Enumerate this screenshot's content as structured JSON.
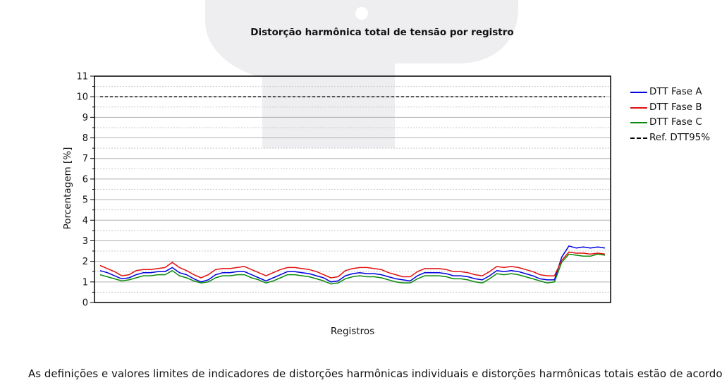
{
  "chart_data": {
    "type": "line",
    "title": "Distorção harmônica total de tensão por registro",
    "xlabel": "Registros",
    "ylabel": "Porcentagem [%]",
    "ylim": [
      0,
      11
    ],
    "yticks": [
      "0",
      "1",
      "2",
      "3",
      "4",
      "5",
      "6",
      "7",
      "8",
      "9",
      "10",
      "11"
    ],
    "x": [
      0,
      10,
      20,
      30,
      40,
      50,
      60,
      70,
      80,
      90,
      100,
      110,
      120,
      130,
      140,
      150,
      160,
      170,
      180,
      190,
      200,
      210,
      220,
      230,
      240,
      250,
      260,
      270,
      280,
      290,
      300,
      310,
      320,
      330,
      340,
      350,
      360,
      370,
      380,
      390,
      400,
      410,
      420,
      430,
      440,
      450,
      460,
      470,
      480,
      490,
      500,
      510,
      520,
      530,
      540,
      550,
      560,
      570,
      580,
      590,
      600,
      610,
      620,
      630,
      640,
      650,
      660,
      670,
      680,
      690,
      700
    ],
    "grid": true,
    "legend_position": "right",
    "series": [
      {
        "name": "DTT Fase A",
        "color": "#0000e0",
        "values": [
          1.55,
          1.45,
          1.3,
          1.15,
          1.2,
          1.35,
          1.45,
          1.45,
          1.5,
          1.5,
          1.7,
          1.45,
          1.35,
          1.15,
          1.0,
          1.1,
          1.35,
          1.45,
          1.45,
          1.5,
          1.5,
          1.35,
          1.2,
          1.05,
          1.2,
          1.35,
          1.5,
          1.5,
          1.45,
          1.4,
          1.3,
          1.2,
          1.0,
          1.05,
          1.3,
          1.4,
          1.45,
          1.4,
          1.4,
          1.35,
          1.25,
          1.15,
          1.1,
          1.05,
          1.3,
          1.45,
          1.45,
          1.45,
          1.4,
          1.3,
          1.3,
          1.25,
          1.15,
          1.1,
          1.3,
          1.55,
          1.5,
          1.55,
          1.5,
          1.4,
          1.3,
          1.15,
          1.1,
          1.1,
          2.2,
          2.75,
          2.65,
          2.7,
          2.65,
          2.7,
          2.65
        ]
      },
      {
        "name": "DTT Fase B",
        "color": "#e01010",
        "values": [
          1.8,
          1.65,
          1.5,
          1.3,
          1.35,
          1.55,
          1.6,
          1.6,
          1.65,
          1.7,
          1.95,
          1.7,
          1.55,
          1.35,
          1.2,
          1.35,
          1.6,
          1.65,
          1.65,
          1.7,
          1.75,
          1.6,
          1.45,
          1.3,
          1.45,
          1.6,
          1.7,
          1.7,
          1.65,
          1.6,
          1.5,
          1.35,
          1.2,
          1.25,
          1.55,
          1.65,
          1.7,
          1.7,
          1.65,
          1.6,
          1.45,
          1.35,
          1.25,
          1.25,
          1.5,
          1.65,
          1.65,
          1.65,
          1.6,
          1.5,
          1.5,
          1.45,
          1.35,
          1.3,
          1.5,
          1.75,
          1.7,
          1.75,
          1.7,
          1.6,
          1.5,
          1.35,
          1.3,
          1.3,
          2.05,
          2.45,
          2.4,
          2.4,
          2.35,
          2.4,
          2.35
        ]
      },
      {
        "name": "DTT Fase C",
        "color": "#0a8a0a",
        "values": [
          1.35,
          1.25,
          1.15,
          1.05,
          1.1,
          1.2,
          1.3,
          1.3,
          1.35,
          1.35,
          1.55,
          1.3,
          1.2,
          1.05,
          0.95,
          1.0,
          1.2,
          1.3,
          1.3,
          1.35,
          1.35,
          1.2,
          1.1,
          0.95,
          1.05,
          1.2,
          1.35,
          1.35,
          1.3,
          1.25,
          1.15,
          1.05,
          0.9,
          0.95,
          1.15,
          1.25,
          1.3,
          1.25,
          1.25,
          1.2,
          1.1,
          1.0,
          0.95,
          0.95,
          1.15,
          1.3,
          1.3,
          1.3,
          1.25,
          1.15,
          1.15,
          1.1,
          1.0,
          0.95,
          1.15,
          1.4,
          1.35,
          1.4,
          1.35,
          1.25,
          1.15,
          1.05,
          0.95,
          1.0,
          1.95,
          2.35,
          2.3,
          2.25,
          2.25,
          2.35,
          2.3
        ]
      },
      {
        "name": "Ref. DTT95%",
        "color": "#000000",
        "dashed": true,
        "values": [
          10,
          10,
          10,
          10,
          10,
          10,
          10,
          10,
          10,
          10,
          10,
          10,
          10,
          10,
          10,
          10,
          10,
          10,
          10,
          10,
          10,
          10,
          10,
          10,
          10,
          10,
          10,
          10,
          10,
          10,
          10,
          10,
          10,
          10,
          10,
          10,
          10,
          10,
          10,
          10,
          10,
          10,
          10,
          10,
          10,
          10,
          10,
          10,
          10,
          10,
          10,
          10,
          10,
          10,
          10,
          10,
          10,
          10,
          10,
          10,
          10,
          10,
          10,
          10,
          10,
          10,
          10,
          10,
          10,
          10,
          10
        ]
      }
    ]
  },
  "footer": {
    "text": "As definições e valores limites de indicadores de distorções harmônicas individuais e distorções harmônicas totais estão de acordo com a"
  },
  "colors": {
    "grid": "#c8c8c8",
    "axis": "#000000",
    "watermark": "#f0f0f3"
  }
}
